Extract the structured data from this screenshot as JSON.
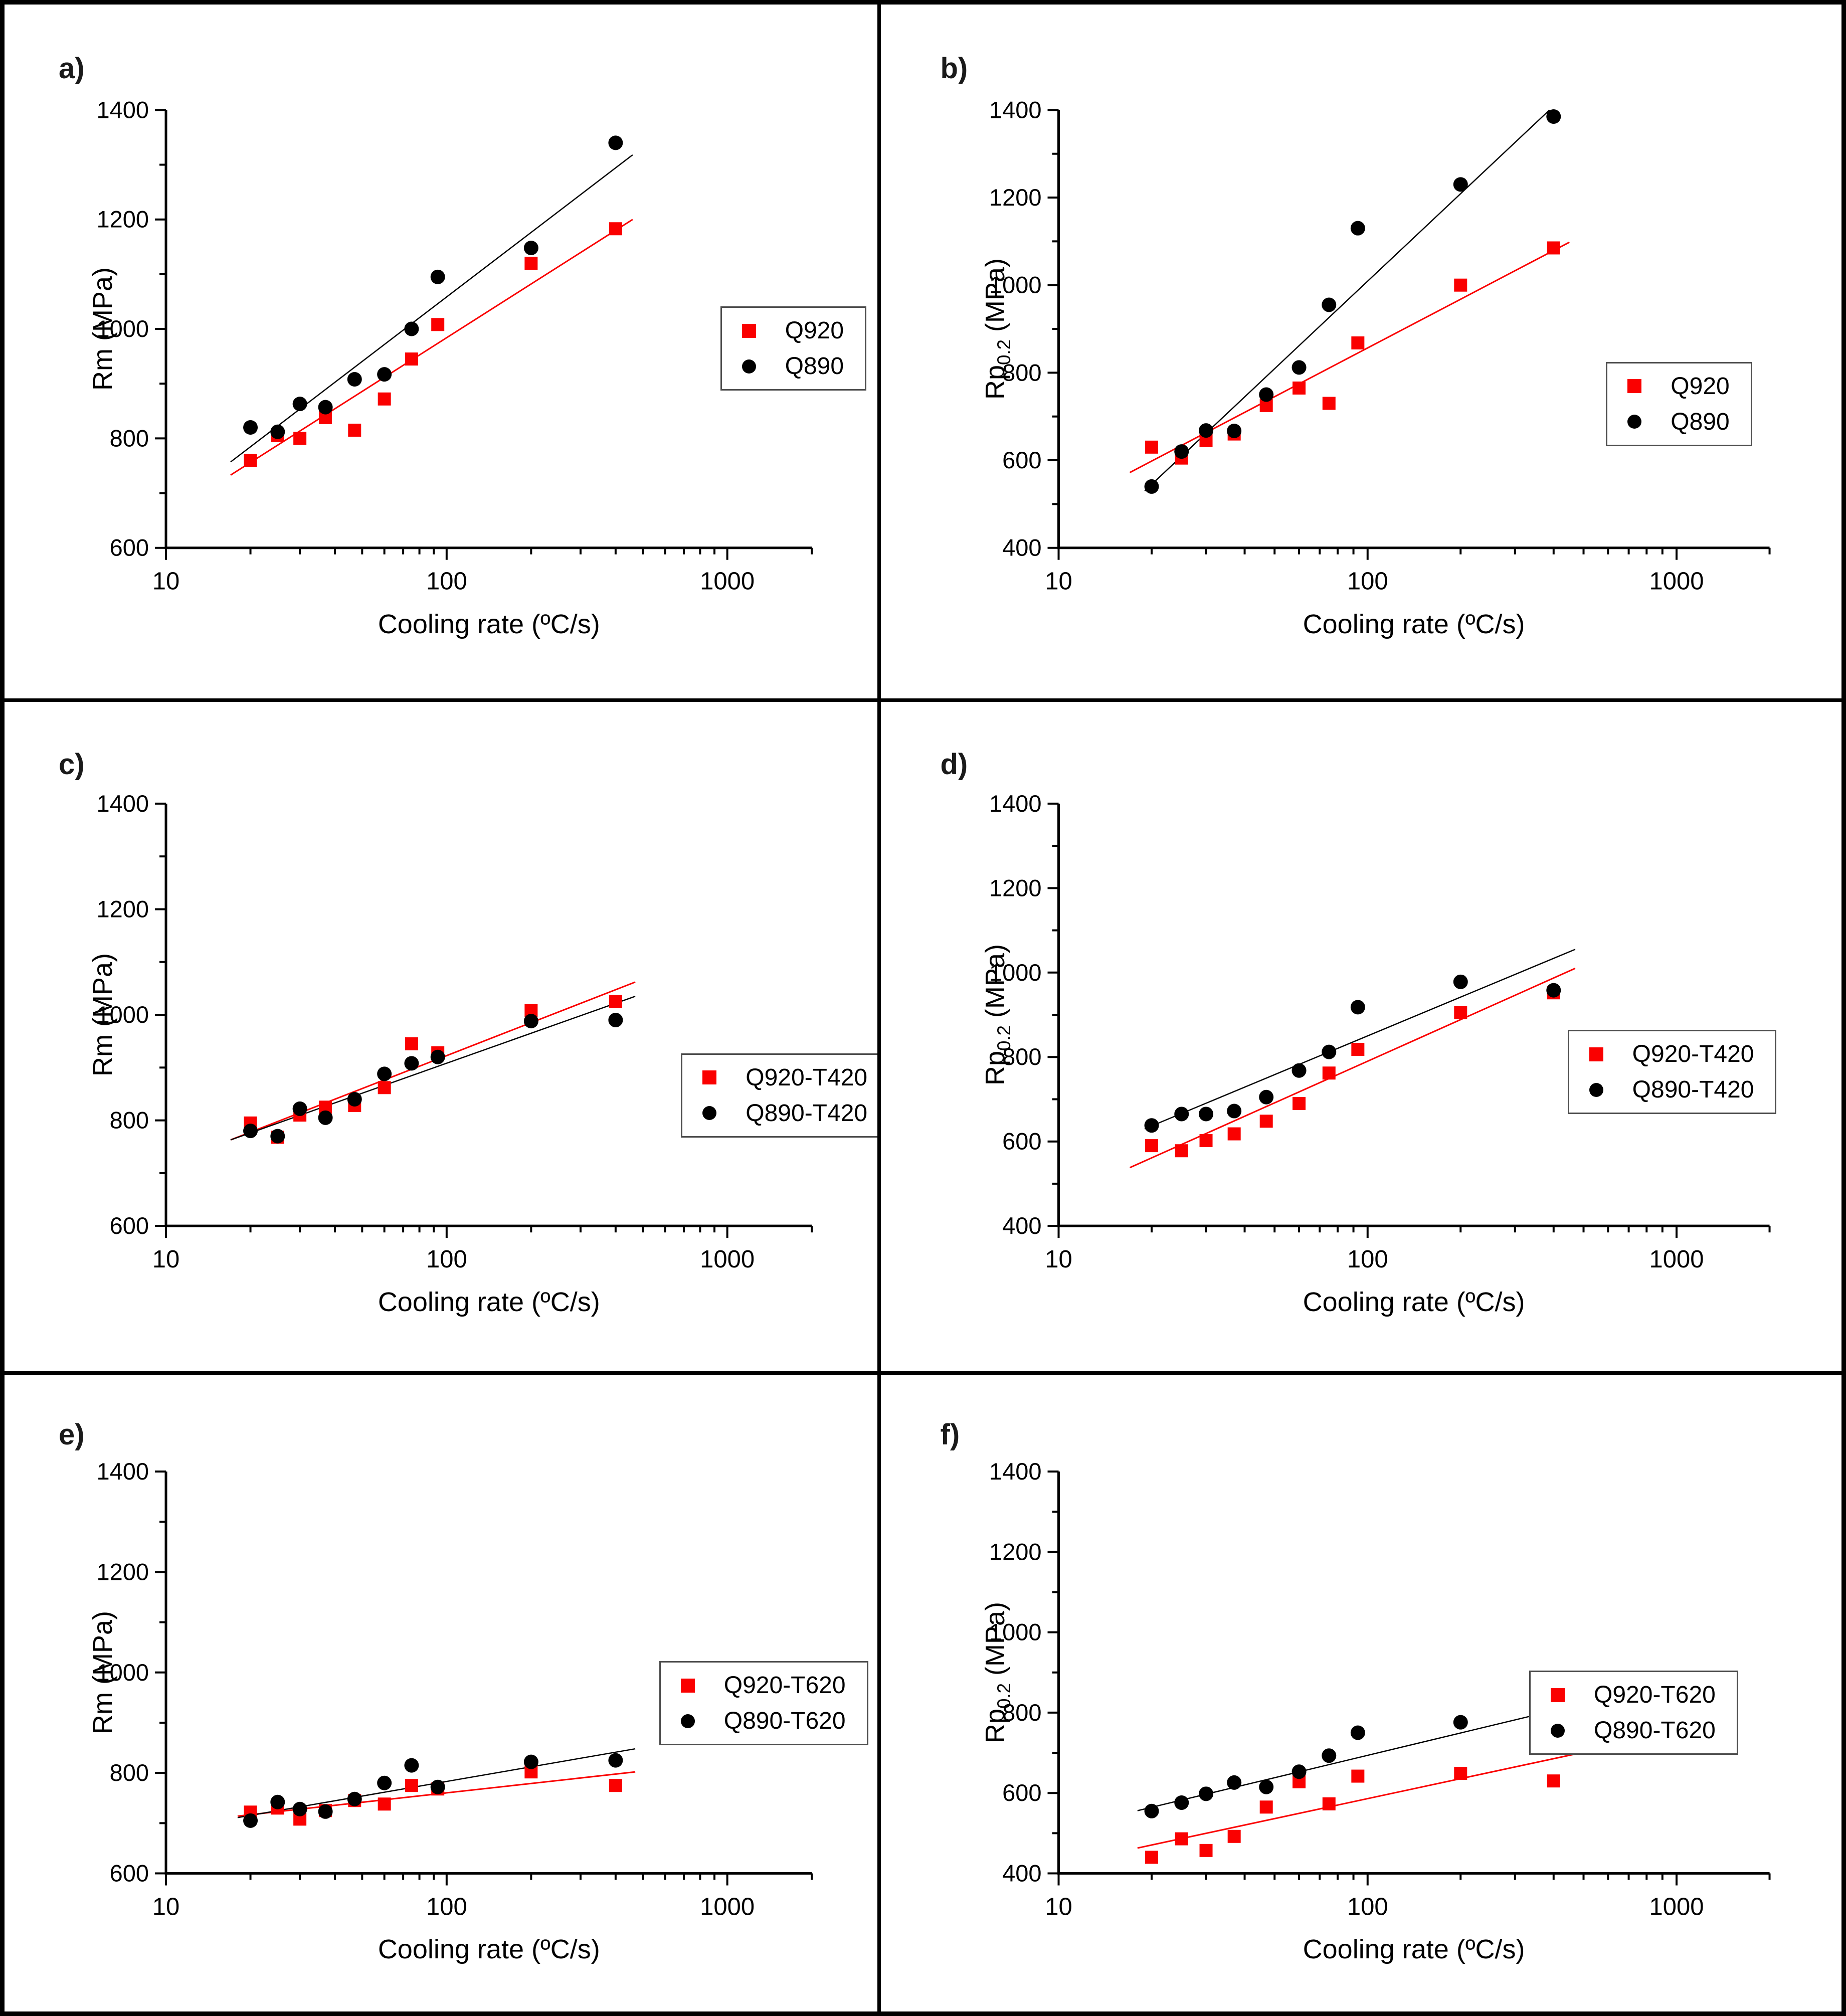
{
  "figure": {
    "background": "#ffffff",
    "border_color": "#000000",
    "accent_red": "#fa0000",
    "series_black": "#000000"
  },
  "chart_data": [
    {
      "id": "a",
      "panel_label": "a)",
      "type": "scatter",
      "xlabel": "Cooling rate (ºC/s)",
      "ylabel_pre": "Rm",
      "ylabel_sub": "",
      "ylabel_post": " (MPa)",
      "xscale": "log",
      "xlim": [
        10,
        2000
      ],
      "ylim": [
        600,
        1400
      ],
      "xticks": [
        10,
        100,
        1000
      ],
      "yticks": [
        600,
        800,
        1000,
        1200,
        1400
      ],
      "grid": false,
      "legend_pos": {
        "x": 0.82,
        "y": 0.435
      },
      "x": [
        20,
        25,
        30,
        37,
        47,
        60,
        75,
        93,
        200,
        400
      ],
      "series": [
        {
          "name": "Q920",
          "marker": "square",
          "color": "#fa0000",
          "values": [
            760,
            805,
            800,
            838,
            815,
            872,
            945,
            1008,
            1120,
            1183
          ],
          "fit": {
            "x1": 17,
            "y1": 733,
            "x2": 460,
            "y2": 1200
          }
        },
        {
          "name": "Q890",
          "marker": "circle",
          "color": "#000000",
          "values": [
            820,
            812,
            863,
            857,
            908,
            917,
            1000,
            1095,
            1148,
            1340
          ],
          "fit": {
            "x1": 17,
            "y1": 757,
            "x2": 460,
            "y2": 1318
          }
        }
      ]
    },
    {
      "id": "b",
      "panel_label": "b)",
      "type": "scatter",
      "xlabel": "Cooling rate (ºC/s)",
      "ylabel_pre": "Rp",
      "ylabel_sub": "0.2",
      "ylabel_post": " (MPa)",
      "xscale": "log",
      "xlim": [
        10,
        2000
      ],
      "ylim": [
        400,
        1400
      ],
      "xticks": [
        10,
        100,
        1000
      ],
      "yticks": [
        400,
        600,
        800,
        1000,
        1200,
        1400
      ],
      "grid": false,
      "legend_pos": {
        "x": 0.755,
        "y": 0.515
      },
      "x": [
        20,
        25,
        30,
        37,
        47,
        60,
        75,
        93,
        200,
        400
      ],
      "series": [
        {
          "name": "Q920",
          "marker": "square",
          "color": "#fa0000",
          "values": [
            630,
            605,
            645,
            660,
            725,
            765,
            730,
            868,
            1000,
            1085
          ],
          "fit": {
            "x1": 17,
            "y1": 572,
            "x2": 450,
            "y2": 1098
          }
        },
        {
          "name": "Q890",
          "marker": "circle",
          "color": "#000000",
          "values": [
            540,
            620,
            668,
            667,
            750,
            812,
            955,
            1130,
            1230,
            1385
          ],
          "fit": {
            "x1": 19,
            "y1": 530,
            "x2": 388,
            "y2": 1400
          }
        }
      ]
    },
    {
      "id": "c",
      "panel_label": "c)",
      "type": "scatter",
      "xlabel": "Cooling rate (ºC/s)",
      "ylabel_pre": "Rm",
      "ylabel_sub": "",
      "ylabel_post": " (MPa)",
      "xscale": "log",
      "xlim": [
        10,
        2000
      ],
      "ylim": [
        600,
        1400
      ],
      "xticks": [
        10,
        100,
        1000
      ],
      "yticks": [
        600,
        800,
        1000,
        1200,
        1400
      ],
      "grid": false,
      "legend_pos": {
        "x": 0.775,
        "y": 0.525
      },
      "x": [
        20,
        25,
        30,
        37,
        47,
        60,
        75,
        93,
        200,
        400
      ],
      "series": [
        {
          "name": "Q920-T420",
          "marker": "square",
          "color": "#fa0000",
          "values": [
            795,
            768,
            810,
            825,
            828,
            862,
            945,
            928,
            1008,
            1025
          ],
          "fit": {
            "x1": 17,
            "y1": 763,
            "x2": 470,
            "y2": 1062
          }
        },
        {
          "name": "Q890-T420",
          "marker": "circle",
          "color": "#000000",
          "values": [
            780,
            770,
            822,
            805,
            840,
            888,
            908,
            920,
            988,
            990
          ],
          "fit": {
            "x1": 17,
            "y1": 763,
            "x2": 470,
            "y2": 1035
          }
        }
      ]
    },
    {
      "id": "d",
      "panel_label": "d)",
      "type": "scatter",
      "xlabel": "Cooling rate (ºC/s)",
      "ylabel_pre": "Rp",
      "ylabel_sub": "0.2",
      "ylabel_post": " (MPa)",
      "xscale": "log",
      "xlim": [
        10,
        2000
      ],
      "ylim": [
        400,
        1400
      ],
      "xticks": [
        10,
        100,
        1000
      ],
      "yticks": [
        400,
        600,
        800,
        1000,
        1200,
        1400
      ],
      "grid": false,
      "legend_pos": {
        "x": 0.715,
        "y": 0.49
      },
      "x": [
        20,
        25,
        30,
        37,
        47,
        60,
        75,
        93,
        200,
        400
      ],
      "series": [
        {
          "name": "Q920-T420",
          "marker": "square",
          "color": "#fa0000",
          "values": [
            590,
            578,
            602,
            618,
            648,
            690,
            762,
            818,
            905,
            952
          ],
          "fit": {
            "x1": 17,
            "y1": 538,
            "x2": 470,
            "y2": 1010
          }
        },
        {
          "name": "Q890-T420",
          "marker": "circle",
          "color": "#000000",
          "values": [
            638,
            665,
            665,
            672,
            705,
            768,
            812,
            918,
            978,
            958
          ],
          "fit": {
            "x1": 19,
            "y1": 630,
            "x2": 470,
            "y2": 1055
          }
        }
      ]
    },
    {
      "id": "e",
      "panel_label": "e)",
      "type": "scatter",
      "xlabel": "Cooling rate (ºC/s)",
      "ylabel_pre": "Rm",
      "ylabel_sub": "",
      "ylabel_post": " (MPa)",
      "xscale": "log",
      "xlim": [
        10,
        2000
      ],
      "ylim": [
        600,
        1400
      ],
      "xticks": [
        10,
        100,
        1000
      ],
      "yticks": [
        600,
        800,
        1000,
        1200,
        1400
      ],
      "grid": false,
      "legend_pos": {
        "x": 0.75,
        "y": 0.45
      },
      "x": [
        20,
        25,
        30,
        37,
        47,
        60,
        75,
        93,
        200,
        400
      ],
      "series": [
        {
          "name": "Q920-T620",
          "marker": "square",
          "color": "#fa0000",
          "values": [
            722,
            730,
            708,
            725,
            745,
            738,
            775,
            768,
            802,
            775
          ],
          "fit": {
            "x1": 18,
            "y1": 714,
            "x2": 470,
            "y2": 802
          }
        },
        {
          "name": "Q890-T620",
          "marker": "circle",
          "color": "#000000",
          "values": [
            705,
            742,
            728,
            723,
            748,
            780,
            815,
            772,
            822,
            825
          ],
          "fit": {
            "x1": 18,
            "y1": 711,
            "x2": 470,
            "y2": 848
          }
        }
      ]
    },
    {
      "id": "f",
      "panel_label": "f)",
      "type": "scatter",
      "xlabel": "Cooling rate (ºC/s)",
      "ylabel_pre": "Rp",
      "ylabel_sub": "0.2",
      "ylabel_post": " (MPa)",
      "xscale": "log",
      "xlim": [
        10,
        2000
      ],
      "ylim": [
        400,
        1400
      ],
      "xticks": [
        10,
        100,
        1000
      ],
      "yticks": [
        400,
        600,
        800,
        1000,
        1200,
        1400
      ],
      "grid": false,
      "legend_pos": {
        "x": 0.675,
        "y": 0.465
      },
      "x": [
        20,
        25,
        30,
        37,
        47,
        60,
        75,
        93,
        200,
        400
      ],
      "series": [
        {
          "name": "Q920-T620",
          "marker": "square",
          "color": "#fa0000",
          "values": [
            440,
            486,
            457,
            492,
            565,
            628,
            573,
            642,
            649,
            630
          ],
          "fit": {
            "x1": 18,
            "y1": 463,
            "x2": 470,
            "y2": 697
          }
        },
        {
          "name": "Q890-T620",
          "marker": "circle",
          "color": "#000000",
          "values": [
            555,
            576,
            598,
            626,
            615,
            653,
            693,
            750,
            776,
            769
          ],
          "fit": {
            "x1": 18,
            "y1": 556,
            "x2": 470,
            "y2": 818
          }
        }
      ]
    }
  ]
}
